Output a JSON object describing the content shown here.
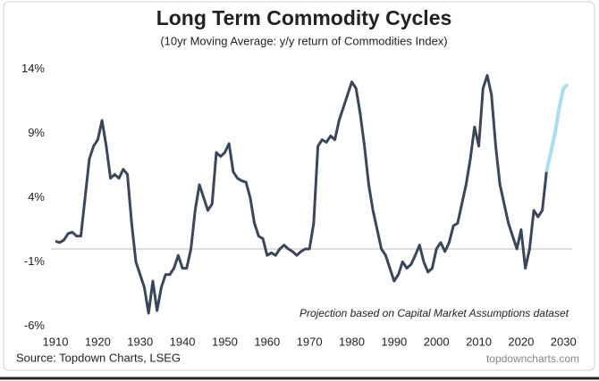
{
  "chart_data": {
    "type": "line",
    "title": "Long Term Commodity Cycles",
    "subtitle": "(10yr Moving Average: y/y return of Commodities Index)",
    "annotation": "Projection based on Capital Market Assumptions dataset",
    "source": "Source: Topdown Charts, LSEG",
    "watermark": "topdowncharts.com",
    "xlim": [
      1909,
      2032
    ],
    "xticks": [
      1910,
      1920,
      1930,
      1940,
      1950,
      1960,
      1970,
      1980,
      1990,
      2000,
      2010,
      2020,
      2030
    ],
    "ylim": [
      -6.5,
      14.5
    ],
    "yticks": [
      {
        "value": -6,
        "label": "-6%"
      },
      {
        "value": -1,
        "label": "-1%"
      },
      {
        "value": 4,
        "label": "4%"
      },
      {
        "value": 9,
        "label": "9%"
      },
      {
        "value": 14,
        "label": "14%"
      }
    ],
    "hline": 0,
    "series": [
      {
        "color": "#3b4759",
        "x": [
          1910,
          1911,
          1912,
          1913,
          1914,
          1915,
          1916,
          1917,
          1918,
          1919,
          1920,
          1921,
          1922,
          1923,
          1924,
          1925,
          1926,
          1927,
          1928,
          1929,
          1930,
          1931,
          1932,
          1933,
          1934,
          1935,
          1936,
          1937,
          1938,
          1939,
          1940,
          1941,
          1942,
          1943,
          1944,
          1945,
          1946,
          1947,
          1948,
          1949,
          1950,
          1951,
          1952,
          1953,
          1954,
          1955,
          1956,
          1957,
          1958,
          1959,
          1960,
          1961,
          1962,
          1963,
          1964,
          1965,
          1966,
          1967,
          1968,
          1969,
          1970,
          1971,
          1972,
          1973,
          1974,
          1975,
          1976,
          1977,
          1978,
          1979,
          1980,
          1981,
          1982,
          1983,
          1984,
          1985,
          1986,
          1987,
          1988,
          1989,
          1990,
          1991,
          1992,
          1993,
          1994,
          1995,
          1996,
          1997,
          1998,
          1999,
          2000,
          2001,
          2002,
          2003,
          2004,
          2005,
          2006,
          2007,
          2008,
          2009,
          2010,
          2011,
          2012,
          2013,
          2014,
          2015,
          2016,
          2017,
          2018,
          2019,
          2020,
          2021,
          2022,
          2023,
          2024,
          2025,
          2026
        ],
        "values": [
          0.6,
          0.5,
          0.7,
          1.2,
          1.3,
          1.0,
          1.0,
          4,
          7,
          8,
          8.5,
          10,
          8,
          5.5,
          5.8,
          5.5,
          6.2,
          5.8,
          2,
          -1,
          -2,
          -3,
          -5,
          -2.5,
          -4.8,
          -3,
          -2,
          -2,
          -1.5,
          -0.5,
          -1.5,
          -1.5,
          0,
          3,
          5,
          4,
          3,
          3.5,
          7.5,
          7.2,
          7.5,
          8.2,
          6,
          5.5,
          5.3,
          5.2,
          4,
          2,
          1,
          0.8,
          -0.5,
          -0.3,
          -0.5,
          0,
          0.3,
          0,
          -0.2,
          -0.5,
          -0.2,
          0,
          0,
          2,
          8,
          8.5,
          8.3,
          8.8,
          8.5,
          10,
          11,
          12,
          13,
          12.5,
          10.5,
          8,
          5,
          3,
          1.5,
          0,
          -0.5,
          -1.5,
          -2.5,
          -2,
          -1,
          -1.5,
          -1.2,
          -0.5,
          0.3,
          -1,
          -1.8,
          -1.5,
          0,
          0.5,
          -0.2,
          0.5,
          1.8,
          2,
          3.5,
          5,
          7,
          9.5,
          8,
          12.5,
          13.5,
          12,
          8,
          5,
          3.5,
          2,
          1,
          0,
          1.5,
          -1.5,
          0,
          3,
          2.5,
          3,
          6
        ]
      },
      {
        "color": "#a9dff0",
        "x": [
          2026,
          2027,
          2028,
          2029,
          2030,
          2031
        ],
        "values": [
          6,
          7.5,
          9,
          11,
          12.5,
          12.8
        ]
      }
    ]
  }
}
